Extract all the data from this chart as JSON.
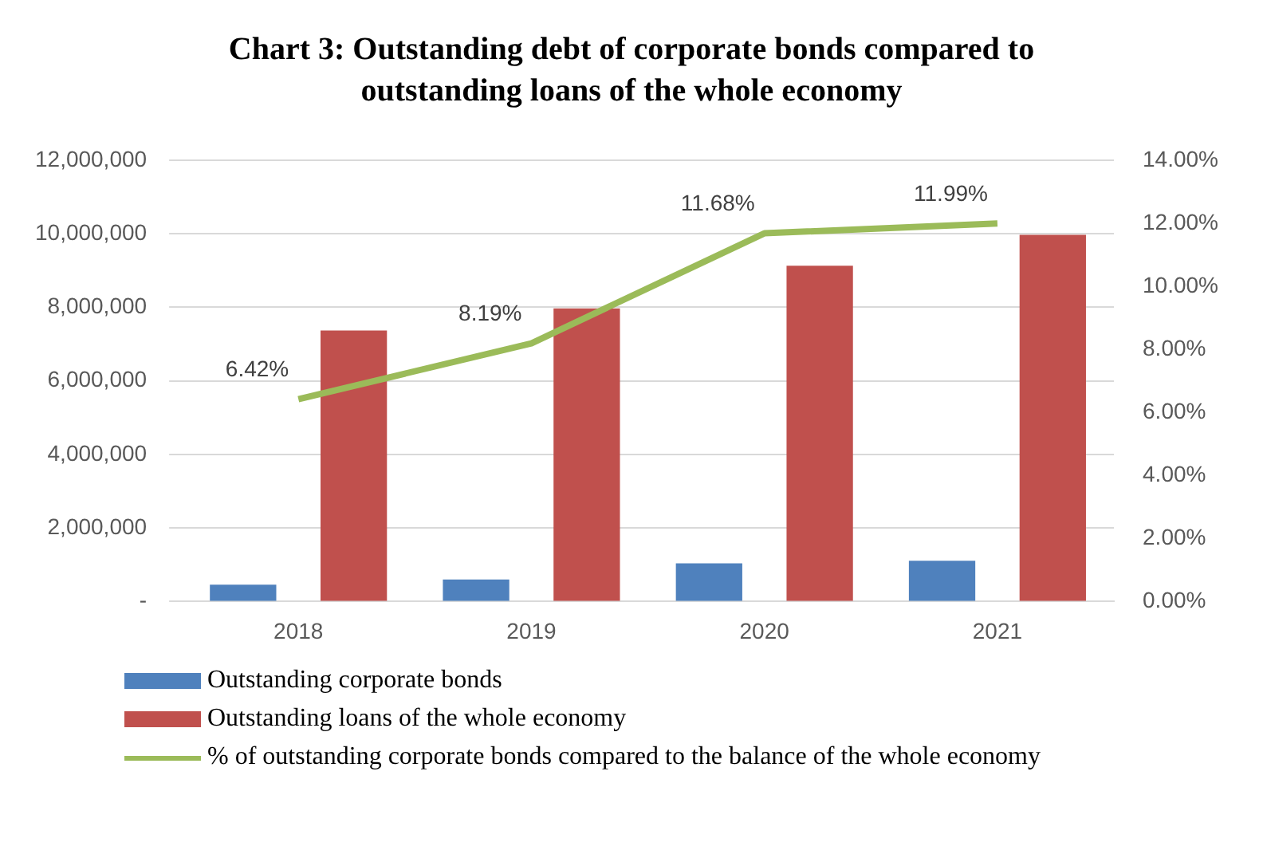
{
  "chart_data": {
    "type": "bar",
    "title": "Chart 3: Outstanding  debt of corporate bonds compared to outstanding  loans of the whole economy",
    "categories": [
      "2018",
      "2019",
      "2020",
      "2021"
    ],
    "series": [
      {
        "name": "Outstanding corporate bonds",
        "color": "#4f81bd",
        "values": [
          460000,
          600000,
          1040000,
          1110000
        ]
      },
      {
        "name": "Outstanding loans of the whole economy",
        "color": "#c0504d",
        "values": [
          7370000,
          7970000,
          9130000,
          9970000
        ]
      },
      {
        "name": "% of outstanding corporate bonds compared to the balance of the whole economy",
        "type": "line",
        "axis": "y2",
        "color": "#9bbb59",
        "values": [
          6.42,
          8.19,
          11.68,
          11.99
        ],
        "value_labels": [
          "6.42%",
          "8.19%",
          "11.68%",
          "11.99%"
        ]
      }
    ],
    "ylim": [
      0,
      12000000
    ],
    "yticks": [
      {
        "value": 0,
        "label": "-"
      },
      {
        "value": 2000000,
        "label": "2,000,000"
      },
      {
        "value": 4000000,
        "label": "4,000,000"
      },
      {
        "value": 6000000,
        "label": "6,000,000"
      },
      {
        "value": 8000000,
        "label": "8,000,000"
      },
      {
        "value": 10000000,
        "label": "10,000,000"
      },
      {
        "value": 12000000,
        "label": "12,000,000"
      }
    ],
    "y2lim": [
      0,
      14
    ],
    "y2ticks": [
      {
        "value": 0,
        "label": "0.00%"
      },
      {
        "value": 2,
        "label": "2.00%"
      },
      {
        "value": 4,
        "label": "4.00%"
      },
      {
        "value": 6,
        "label": "6.00%"
      },
      {
        "value": 8,
        "label": "8.00%"
      },
      {
        "value": 10,
        "label": "10.00%"
      },
      {
        "value": 12,
        "label": "12.00%"
      },
      {
        "value": 14,
        "label": "14.00%"
      }
    ],
    "grid": "y",
    "legend": "bottom",
    "marker": "none"
  }
}
